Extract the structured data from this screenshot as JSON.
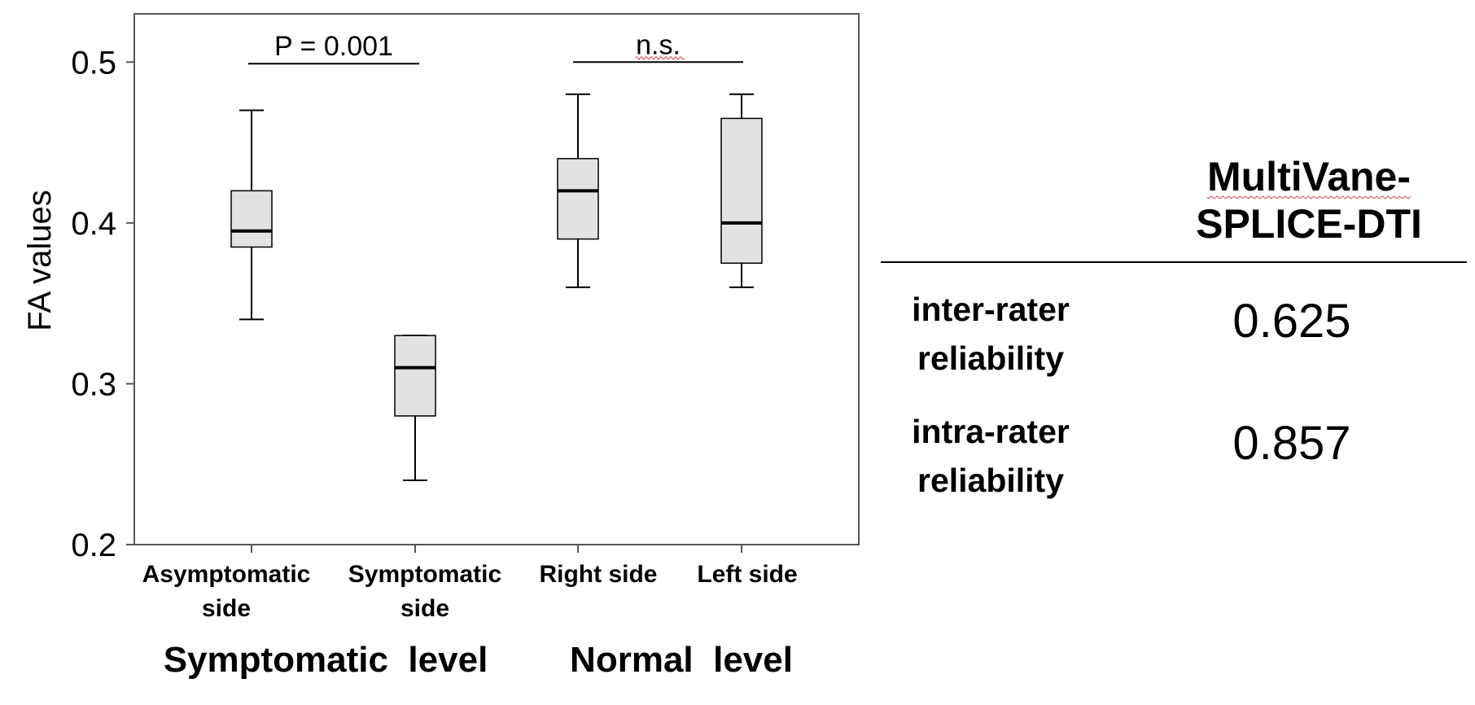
{
  "chart_data": {
    "type": "box",
    "ylabel": "FA values",
    "ylim": [
      0.2,
      0.53
    ],
    "yticks": [
      "0.2",
      "0.3",
      "0.4",
      "0.5"
    ],
    "categories": [
      {
        "line1": "Asymptomatic",
        "line2": "side"
      },
      {
        "line1": "Symptomatic",
        "line2": "side"
      },
      {
        "line1": "Right side",
        "line2": ""
      },
      {
        "line1": "Left side",
        "line2": ""
      }
    ],
    "groups": [
      {
        "label": "Symptomatic  level",
        "categories": [
          0,
          1
        ]
      },
      {
        "label": "Normal  level",
        "categories": [
          2,
          3
        ]
      }
    ],
    "boxes": [
      {
        "min": 0.34,
        "q1": 0.385,
        "median": 0.395,
        "q3": 0.42,
        "max": 0.47
      },
      {
        "min": 0.24,
        "q1": 0.28,
        "median": 0.31,
        "q3": 0.33,
        "max": 0.33
      },
      {
        "min": 0.36,
        "q1": 0.39,
        "median": 0.42,
        "q3": 0.44,
        "max": 0.48
      },
      {
        "min": 0.36,
        "q1": 0.375,
        "median": 0.4,
        "q3": 0.465,
        "max": 0.48
      }
    ],
    "comparisons": [
      {
        "between": [
          0,
          1
        ],
        "label": "P = 0.001",
        "level": 0.499
      },
      {
        "between": [
          2,
          3
        ],
        "label": "n.s.",
        "level": 0.5
      }
    ],
    "colors": {
      "box_fill": "#e2e2e2",
      "stroke": "#000000"
    }
  },
  "table": {
    "header_line1": "MultiVane-",
    "header_line2": "SPLICE-DTI",
    "rows": [
      {
        "label_line1": "inter-rater",
        "label_line2": "reliability",
        "value": "0.625"
      },
      {
        "label_line1": "intra-rater",
        "label_line2": "reliability",
        "value": "0.857"
      }
    ]
  }
}
